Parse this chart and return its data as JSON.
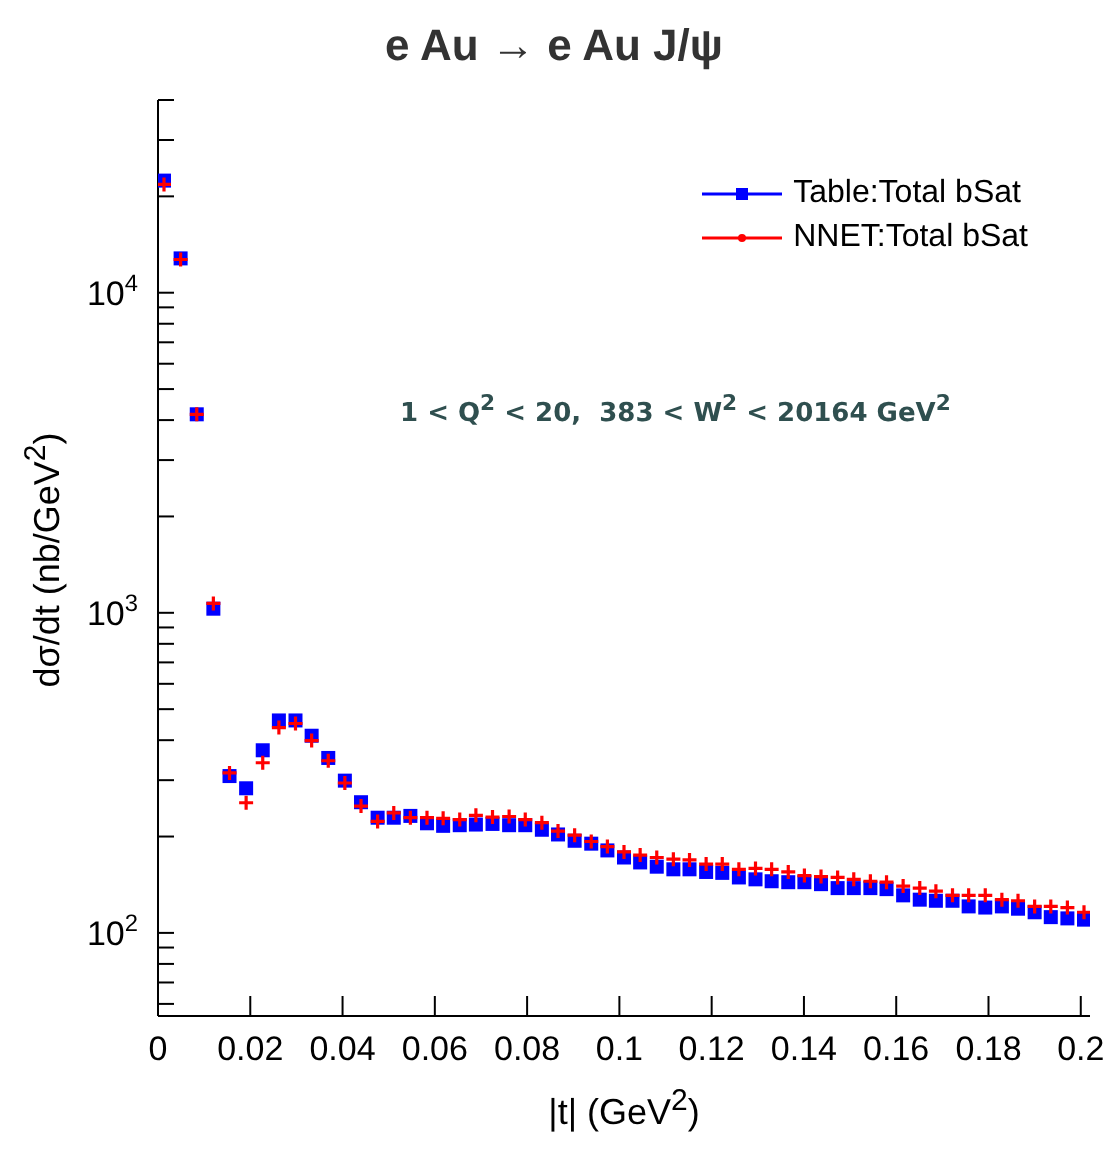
{
  "chart_data": {
    "type": "scatter",
    "title": "e Au → e Au J/ψ",
    "xlabel": "|t| (GeV$^{2}$)",
    "ylabel": "dσ/dt (nb/GeV$^{2}$)",
    "annotations": [
      "1 < Q$^{2}$ < 20,  383 < W$^{2}$ < 20164 GeV$^{2}$"
    ],
    "x": [
      0.0013,
      0.0049,
      0.0084,
      0.012,
      0.0155,
      0.0191,
      0.0227,
      0.0262,
      0.0298,
      0.0333,
      0.0369,
      0.0405,
      0.044,
      0.0476,
      0.0511,
      0.0547,
      0.0583,
      0.0618,
      0.0654,
      0.0689,
      0.0725,
      0.0761,
      0.0796,
      0.0832,
      0.0867,
      0.0903,
      0.0939,
      0.0974,
      0.101,
      0.1045,
      0.1081,
      0.1117,
      0.1152,
      0.1188,
      0.1223,
      0.1259,
      0.1295,
      0.133,
      0.1366,
      0.1401,
      0.1437,
      0.1473,
      0.1508,
      0.1544,
      0.1579,
      0.1615,
      0.1651,
      0.1686,
      0.1722,
      0.1757,
      0.1793,
      0.1829,
      0.1864,
      0.19,
      0.1935,
      0.1971,
      0.2007
    ],
    "series": [
      {
        "name": "Table:Total bSat",
        "color": "#0000ff",
        "marker": "square",
        "values": [
          22400,
          12800,
          4170,
          1030,
          309,
          283,
          372,
          461,
          461,
          413,
          352,
          299,
          256,
          229,
          229,
          232,
          220,
          216,
          217,
          218,
          219,
          217,
          217,
          210,
          203,
          194,
          190,
          181,
          172,
          166,
          161,
          158,
          158,
          155,
          154,
          149,
          147,
          145,
          144,
          144,
          142,
          138,
          138,
          138,
          137,
          131,
          127,
          126,
          126,
          121,
          120,
          121,
          119,
          116,
          112,
          111,
          110
        ]
      },
      {
        "name": "NNET:Total bSat",
        "color": "#ff0000",
        "marker": "cross",
        "values": [
          21800,
          12700,
          4170,
          1070,
          316,
          255,
          340,
          438,
          451,
          399,
          345,
          294,
          249,
          223,
          237,
          229,
          229,
          228,
          226,
          233,
          230,
          231,
          226,
          221,
          208,
          202,
          193,
          186,
          179,
          175,
          172,
          170,
          169,
          164,
          164,
          158,
          159,
          158,
          155,
          151,
          150,
          149,
          147,
          145,
          144,
          140,
          138,
          135,
          131,
          131,
          131,
          127,
          126,
          121,
          121,
          120,
          116
        ]
      }
    ],
    "xlim": [
      0,
      0.202
    ],
    "xticks": [
      0,
      0.02,
      0.04,
      0.06,
      0.08,
      0.1,
      0.12,
      0.14,
      0.16,
      0.18,
      0.2
    ],
    "ylim": [
      55,
      40000
    ],
    "log": true,
    "yticks": [
      {
        "value": 60,
        "label": null
      },
      {
        "value": 70,
        "label": null
      },
      {
        "value": 80,
        "label": null
      },
      {
        "value": 90,
        "label": null
      },
      {
        "value": 100,
        "label": "10$^{2}$"
      },
      {
        "value": 200,
        "label": null
      },
      {
        "value": 300,
        "label": null
      },
      {
        "value": 400,
        "label": null
      },
      {
        "value": 500,
        "label": null
      },
      {
        "value": 600,
        "label": null
      },
      {
        "value": 700,
        "label": null
      },
      {
        "value": 800,
        "label": null
      },
      {
        "value": 900,
        "label": null
      },
      {
        "value": 1000,
        "label": "10$^{3}$"
      },
      {
        "value": 2000,
        "label": null
      },
      {
        "value": 3000,
        "label": null
      },
      {
        "value": 4000,
        "label": null
      },
      {
        "value": 5000,
        "label": null
      },
      {
        "value": 6000,
        "label": null
      },
      {
        "value": 7000,
        "label": null
      },
      {
        "value": 8000,
        "label": null
      },
      {
        "value": 9000,
        "label": null
      },
      {
        "value": 10000,
        "label": "10$^{4}$"
      },
      {
        "value": 20000,
        "label": null
      },
      {
        "value": 30000,
        "label": null
      },
      {
        "value": 40000,
        "label": null
      }
    ],
    "legend": "top right"
  }
}
